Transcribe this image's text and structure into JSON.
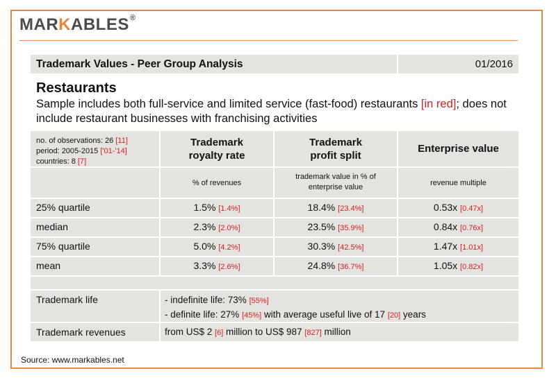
{
  "brand": {
    "logo_prefix": "MAR",
    "logo_accent": "K",
    "logo_suffix": "ABLES",
    "registered": "®"
  },
  "header": {
    "title": "Trademark Values - Peer Group Analysis",
    "date": "01/2016"
  },
  "intro": {
    "sector": "Restaurants",
    "desc_part1": "Sample includes both full-service and limited service (fast-food) restaurants ",
    "desc_red": "[in red]",
    "desc_part2": "; does not include restaurant businesses with franchising activities"
  },
  "meta": {
    "obs": "no. of observations: 26 ",
    "obs_red": "[11]",
    "period": "period: 2005-2015 ",
    "period_red": "['01-'14]",
    "countries": "countries: 8 ",
    "countries_red": "[7]"
  },
  "columns": [
    {
      "line1": "Trademark",
      "line2": "royalty rate",
      "unit": "% of revenues"
    },
    {
      "line1": "Trademark",
      "line2": "profit split",
      "unit_line1": "trademark value in % of",
      "unit_line2": "enterprise value"
    },
    {
      "line1": "Enterprise value",
      "unit": "revenue multiple"
    }
  ],
  "rows": [
    {
      "label": "25% quartile",
      "royalty": "1.5%",
      "royalty_red": "[1.4%]",
      "split": "18.4%",
      "split_red": "[23.4%]",
      "ev": "0.53x",
      "ev_red": "[0.47x]"
    },
    {
      "label": "median",
      "royalty": "2.3%",
      "royalty_red": "[2.0%]",
      "split": "23.5%",
      "split_red": "[35.9%]",
      "ev": "0.84x",
      "ev_red": "[0.76x]"
    },
    {
      "label": "75% quartile",
      "royalty": "5.0%",
      "royalty_red": "[4.2%]",
      "split": "30.3%",
      "split_red": "[42.5%]",
      "ev": "1.47x",
      "ev_red": "[1.01x]"
    },
    {
      "label": "mean",
      "royalty": "3.3%",
      "royalty_red": "[2.6%]",
      "split": "24.8%",
      "split_red": "[36.7%]",
      "ev": "1.05x",
      "ev_red": "[0.82x]"
    }
  ],
  "life": {
    "label": "Trademark life",
    "l1": "- indefinite life: 73% ",
    "l1_red": "[55%]",
    "l2a": "- definite life: 27% ",
    "l2_red1": "[45%]",
    "l2b": " with average useful live of 17 ",
    "l2_red2": "[20]",
    "l2c": " years"
  },
  "revenues": {
    "label": "Trademark revenues",
    "a": "from US$ 2 ",
    "red1": "[6]",
    "b": " million to US$ 987 ",
    "red2": "[827]",
    "c": " million"
  },
  "source": "Source: www.markables.net"
}
